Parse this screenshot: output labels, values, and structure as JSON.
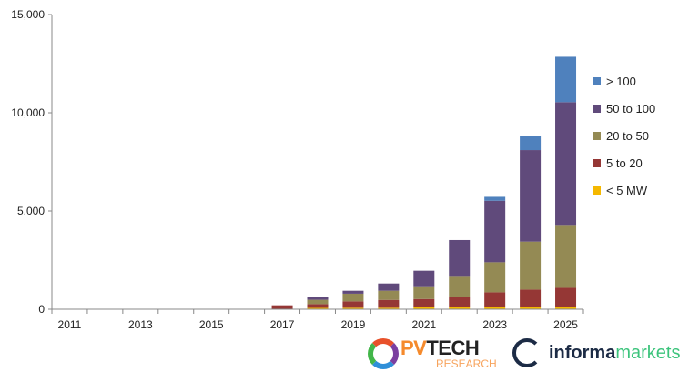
{
  "chart_data": {
    "type": "bar",
    "stacked": true,
    "title": "",
    "xlabel": "",
    "ylabel": "",
    "categories": [
      "2011",
      "2012",
      "2013",
      "2014",
      "2015",
      "2016",
      "2017",
      "2018",
      "2019",
      "2020",
      "2021",
      "2022",
      "2023",
      "2024",
      "2025"
    ],
    "x_tick_labels": [
      "2011",
      "2013",
      "2015",
      "2017",
      "2019",
      "2021",
      "2023",
      "2025"
    ],
    "y_tick_labels": [
      "0",
      "5,000",
      "10,000",
      "15,000"
    ],
    "y_ticks": [
      0,
      5000,
      10000,
      15000
    ],
    "ylim": [
      0,
      15000
    ],
    "grid": false,
    "legend_position": "right",
    "series": [
      {
        "name": "< 5 MW",
        "color": "#f5b800",
        "values": [
          0,
          0,
          0,
          0,
          0,
          0,
          20,
          70,
          75,
          75,
          110,
          110,
          120,
          120,
          130
        ]
      },
      {
        "name": "5 to 20",
        "color": "#953735",
        "values": [
          0,
          0,
          0,
          0,
          0,
          0,
          180,
          190,
          325,
          400,
          410,
          520,
          740,
          880,
          960
        ]
      },
      {
        "name": "20 to 50",
        "color": "#948a54",
        "values": [
          0,
          0,
          0,
          0,
          0,
          0,
          0,
          220,
          390,
          465,
          605,
          1020,
          1530,
          2440,
          3200
        ]
      },
      {
        "name": "50 to 100",
        "color": "#604a7b",
        "values": [
          0,
          0,
          0,
          0,
          0,
          0,
          0,
          135,
          150,
          370,
          835,
          1870,
          3130,
          4660,
          6250
        ]
      },
      {
        "name": "> 100",
        "color": "#4f81bd",
        "values": [
          0,
          0,
          0,
          0,
          0,
          0,
          0,
          0,
          0,
          0,
          0,
          0,
          200,
          720,
          2310
        ]
      }
    ],
    "legend_order": [
      "> 100",
      "50 to 100",
      "20 to 50",
      "5 to 20",
      "< 5 MW"
    ]
  },
  "logos": {
    "pvtech": {
      "pv": "PV",
      "tech": "TECH",
      "sub": "RESEARCH"
    },
    "informa": {
      "a": "informa",
      "b": "markets"
    }
  }
}
